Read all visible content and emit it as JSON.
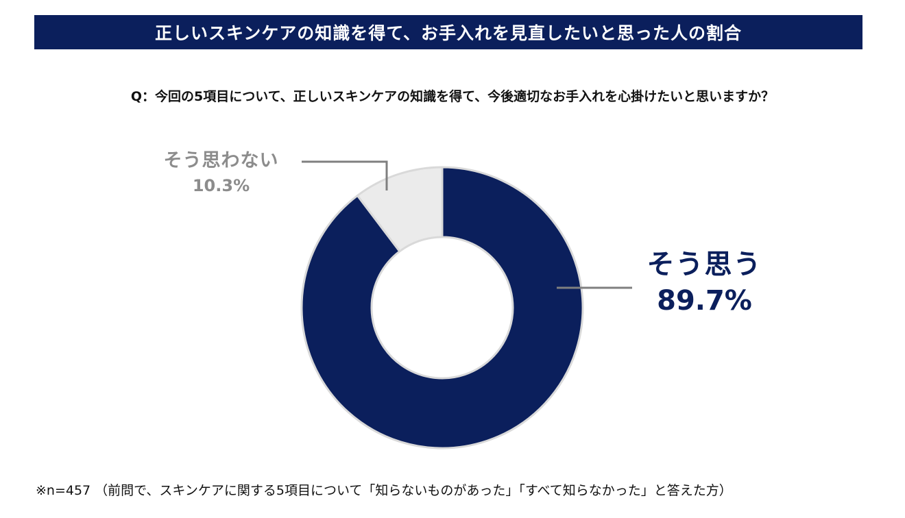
{
  "header": {
    "title": "正しいスキンケアの知識を得て、お手入れを見直したいと思った人の割合"
  },
  "question": "Q：今回の5項目について、正しいスキンケアの知識を得て、今後適切なお手入れを心掛けたいと思いますか？",
  "footnote": "※n=457 （前問で、スキンケアに関する5項目について「知らないものがあった」「すべて知らなかった」と答えた方）",
  "chart_data": {
    "type": "pie",
    "style": "donut",
    "categories": [
      "そう思う",
      "そう思わない"
    ],
    "values": [
      89.7,
      10.3
    ],
    "value_labels": [
      "89.7%",
      "10.3%"
    ],
    "colors": [
      "#0b1f5c",
      "#ebebeb"
    ],
    "label_colors": [
      "#0b1f5c",
      "#8c8c8c"
    ],
    "start": "top",
    "direction": "clockwise"
  }
}
